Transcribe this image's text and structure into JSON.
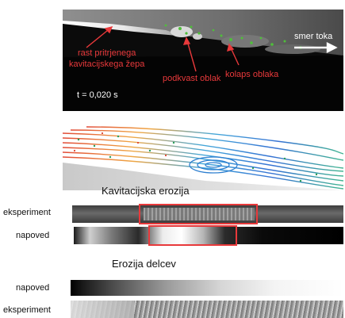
{
  "top_panel": {
    "time_label": "t = 0,020 s",
    "flow_direction_label": "smer toka",
    "annotations": {
      "attached_pocket": "rast pritrjenega\nkavitacijskega žepa",
      "horseshoe_cloud": "podkvast oblak",
      "cloud_collapse": "kolaps oblaka"
    }
  },
  "section_cavitation": {
    "heading": "Kavitacijska erozija",
    "row_experiment_label": "eksperiment",
    "row_prediction_label": "napoved"
  },
  "section_particles": {
    "heading": "Erozija delcev",
    "row_prediction_label": "napoved",
    "row_experiment_label": "eksperiment"
  },
  "colors": {
    "annotation": "#e8393b",
    "highlight_box": "#e8393b",
    "panel_bg": "#0b0b0b"
  }
}
